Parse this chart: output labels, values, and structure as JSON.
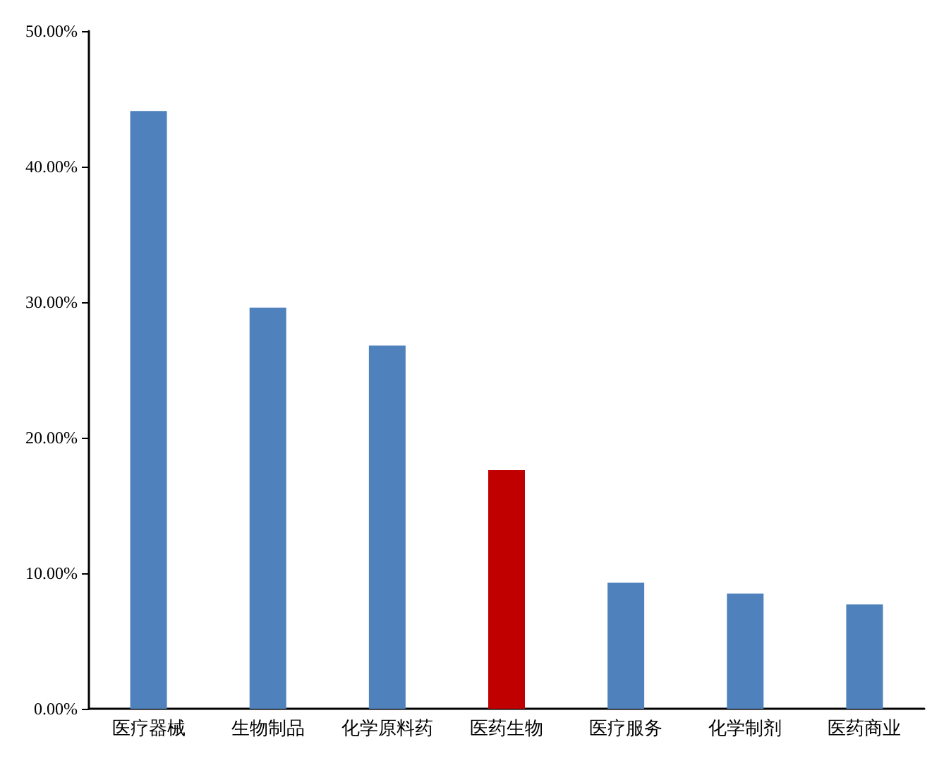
{
  "chart_data": {
    "type": "bar",
    "categories": [
      "医疗器械",
      "生物制品",
      "化学原料药",
      "医药生物",
      "医疗服务",
      "化学制剂",
      "医药商业"
    ],
    "values": [
      44.1,
      29.6,
      26.8,
      17.6,
      9.3,
      8.5,
      7.7
    ],
    "colors": [
      "#4f81bd",
      "#4f81bd",
      "#4f81bd",
      "#c00000",
      "#4f81bd",
      "#4f81bd",
      "#4f81bd"
    ],
    "ylim": [
      0,
      50
    ],
    "yticks": [
      {
        "value": 0,
        "label": "0.00%"
      },
      {
        "value": 10,
        "label": "10.00%"
      },
      {
        "value": 20,
        "label": "20.00%"
      },
      {
        "value": 30,
        "label": "30.00%"
      },
      {
        "value": 40,
        "label": "40.00%"
      },
      {
        "value": 50,
        "label": "50.00%"
      }
    ],
    "grid": false
  }
}
